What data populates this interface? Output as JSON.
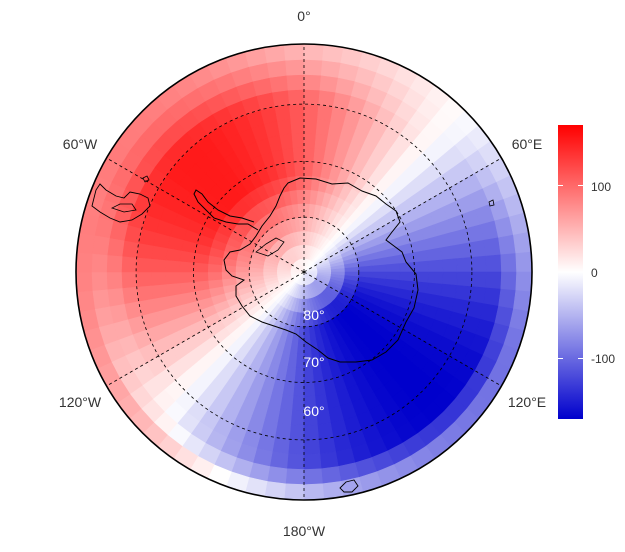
{
  "map": {
    "projection": "south-polar-stereographic",
    "longitude_labels": {
      "top": "0°",
      "upper_left": "60°W",
      "upper_right": "60°E",
      "lower_left": "120°W",
      "lower_right": "120°E",
      "bottom": "180°W"
    },
    "latitude_labels": [
      "80°",
      "70°",
      "60°"
    ],
    "graticule_latitudes": [
      -80,
      -70,
      -60,
      -50
    ],
    "graticule_longitudes": [
      0,
      60,
      120,
      180,
      240,
      300
    ],
    "graticule_style": "dashed",
    "field_pattern": "wavenumber-1 anomaly: positive over the Weddell Sea / Antarctic Peninsula sector, negative over the Ross / Amundsen Sea sector",
    "colors": {
      "positive": "#ff0000",
      "zero": "#ffffff",
      "negative": "#0000cc",
      "coastline": "#000000"
    }
  },
  "colorbar": {
    "range": [
      -170,
      170
    ],
    "ticks": [
      100,
      0,
      -100
    ],
    "tick_labels": [
      "100",
      "0",
      "-100"
    ],
    "colors": [
      "#ff0000",
      "#ffffff",
      "#0000cc"
    ]
  }
}
